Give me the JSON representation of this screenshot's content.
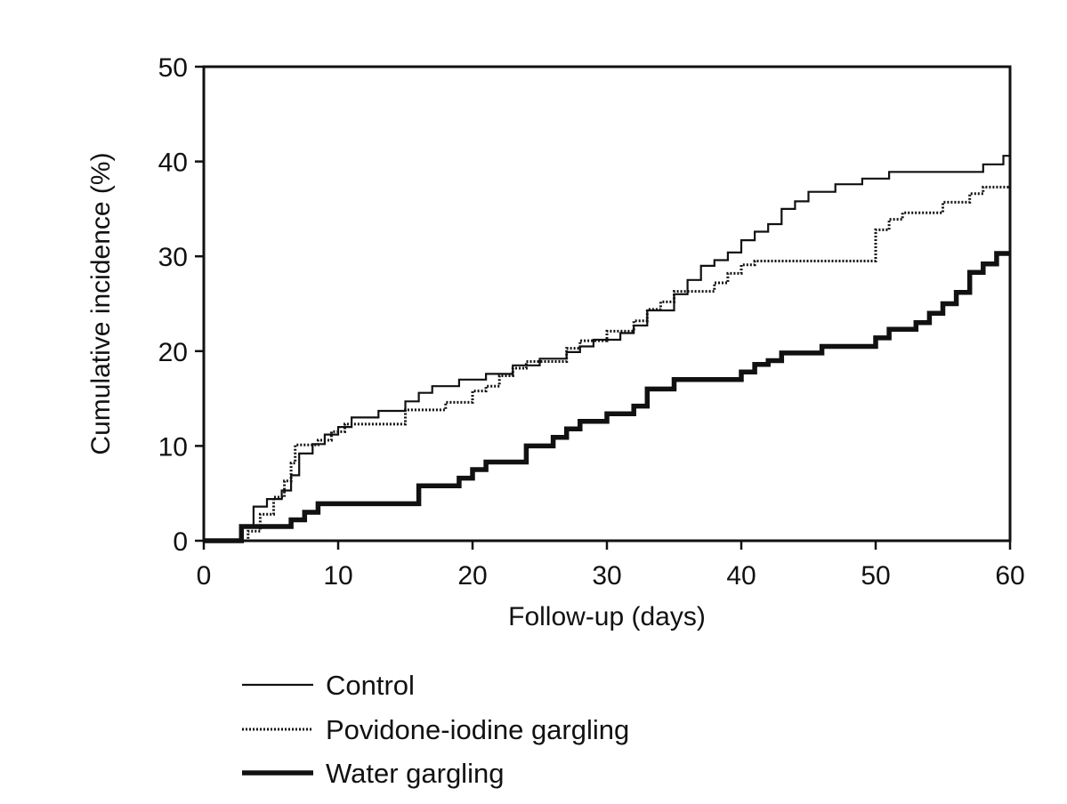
{
  "chart_data": {
    "type": "line",
    "step": true,
    "title": "",
    "xlabel": "Follow-up (days)",
    "ylabel": "Cumulative incidence (%)",
    "xlim": [
      0,
      60
    ],
    "ylim": [
      0,
      50
    ],
    "xticks": [
      "0",
      "10",
      "20",
      "30",
      "40",
      "50",
      "60"
    ],
    "yticks": [
      "0",
      "10",
      "20",
      "30",
      "40",
      "50"
    ],
    "grid": false,
    "legend_position": "bottom-left",
    "series": [
      {
        "name": "Control",
        "style": "solid-thin",
        "color": "#111111",
        "points": [
          [
            0,
            0
          ],
          [
            2.8,
            0
          ],
          [
            2.8,
            1.5
          ],
          [
            3.7,
            1.5
          ],
          [
            3.7,
            3.6
          ],
          [
            4.7,
            3.6
          ],
          [
            4.7,
            4.4
          ],
          [
            5.8,
            4.4
          ],
          [
            5.8,
            5.3
          ],
          [
            6.5,
            5.3
          ],
          [
            6.5,
            6.9
          ],
          [
            7.1,
            6.9
          ],
          [
            7.1,
            9.2
          ],
          [
            8.1,
            9.2
          ],
          [
            8.1,
            10.2
          ],
          [
            9,
            10.2
          ],
          [
            9,
            11.2
          ],
          [
            10,
            11.2
          ],
          [
            10,
            12
          ],
          [
            11,
            12
          ],
          [
            11,
            13
          ],
          [
            13,
            13
          ],
          [
            13,
            13.7
          ],
          [
            15,
            13.7
          ],
          [
            15,
            14.7
          ],
          [
            16,
            14.7
          ],
          [
            16,
            15.6
          ],
          [
            17,
            15.6
          ],
          [
            17,
            16.3
          ],
          [
            19,
            16.3
          ],
          [
            19,
            17
          ],
          [
            21,
            17
          ],
          [
            21,
            17.6
          ],
          [
            23,
            17.6
          ],
          [
            23,
            18.5
          ],
          [
            25,
            18.5
          ],
          [
            25,
            19.2
          ],
          [
            27,
            19.2
          ],
          [
            27,
            19.9
          ],
          [
            28,
            19.9
          ],
          [
            28,
            20.5
          ],
          [
            29,
            20.5
          ],
          [
            29,
            21.2
          ],
          [
            31,
            21.2
          ],
          [
            31,
            21.9
          ],
          [
            32,
            21.9
          ],
          [
            32,
            22.7
          ],
          [
            33,
            22.7
          ],
          [
            33,
            24.3
          ],
          [
            35,
            24.3
          ],
          [
            35,
            26
          ],
          [
            36,
            26
          ],
          [
            36,
            27.5
          ],
          [
            37,
            27.5
          ],
          [
            37,
            29
          ],
          [
            38,
            29
          ],
          [
            38,
            29.6
          ],
          [
            39,
            29.6
          ],
          [
            39,
            30.4
          ],
          [
            40,
            30.4
          ],
          [
            40,
            31.7
          ],
          [
            41,
            31.7
          ],
          [
            41,
            32.6
          ],
          [
            42,
            32.6
          ],
          [
            42,
            33.4
          ],
          [
            43,
            33.4
          ],
          [
            43,
            35
          ],
          [
            44,
            35
          ],
          [
            44,
            35.8
          ],
          [
            45,
            35.8
          ],
          [
            45,
            36.8
          ],
          [
            47,
            36.8
          ],
          [
            47,
            37.6
          ],
          [
            49,
            37.6
          ],
          [
            49,
            38.2
          ],
          [
            51,
            38.2
          ],
          [
            51,
            38.9
          ],
          [
            58,
            38.9
          ],
          [
            58,
            39.7
          ],
          [
            59.5,
            39.7
          ],
          [
            59.5,
            40.6
          ],
          [
            60,
            40.6
          ]
        ]
      },
      {
        "name": "Povidone-iodine gargling",
        "style": "dotted",
        "color": "#111111",
        "points": [
          [
            0,
            0
          ],
          [
            3.3,
            0
          ],
          [
            3.3,
            1
          ],
          [
            4.2,
            1
          ],
          [
            4.2,
            2.8
          ],
          [
            5.2,
            2.8
          ],
          [
            5.2,
            4.6
          ],
          [
            6,
            4.6
          ],
          [
            6,
            6.3
          ],
          [
            6.5,
            6.3
          ],
          [
            6.5,
            8.2
          ],
          [
            6.8,
            8.2
          ],
          [
            6.8,
            10.1
          ],
          [
            8.5,
            10.1
          ],
          [
            8.5,
            10.6
          ],
          [
            9.5,
            10.6
          ],
          [
            9.5,
            11.5
          ],
          [
            10.5,
            11.5
          ],
          [
            10.5,
            12.3
          ],
          [
            15,
            12.3
          ],
          [
            15,
            13.8
          ],
          [
            18,
            13.8
          ],
          [
            18,
            14.6
          ],
          [
            20,
            14.6
          ],
          [
            20,
            15.8
          ],
          [
            21,
            15.8
          ],
          [
            21,
            16.3
          ],
          [
            22,
            16.3
          ],
          [
            22,
            17.4
          ],
          [
            23,
            17.4
          ],
          [
            23,
            18.2
          ],
          [
            24,
            18.2
          ],
          [
            24,
            18.9
          ],
          [
            27,
            18.9
          ],
          [
            27,
            20.3
          ],
          [
            28,
            20.3
          ],
          [
            28,
            21.1
          ],
          [
            30,
            21.1
          ],
          [
            30,
            22.1
          ],
          [
            32,
            22.1
          ],
          [
            32,
            23.2
          ],
          [
            33,
            23.2
          ],
          [
            33,
            24.4
          ],
          [
            34,
            24.4
          ],
          [
            34,
            25.2
          ],
          [
            35,
            25.2
          ],
          [
            35,
            26.3
          ],
          [
            38,
            26.3
          ],
          [
            38,
            27.2
          ],
          [
            39,
            27.2
          ],
          [
            39,
            28.2
          ],
          [
            40,
            28.2
          ],
          [
            40,
            29.1
          ],
          [
            41,
            29.1
          ],
          [
            41,
            29.5
          ],
          [
            50,
            29.5
          ],
          [
            50,
            32.8
          ],
          [
            51,
            32.8
          ],
          [
            51,
            33.9
          ],
          [
            52,
            33.9
          ],
          [
            52,
            34.6
          ],
          [
            55,
            34.6
          ],
          [
            55,
            35.7
          ],
          [
            57,
            35.7
          ],
          [
            57,
            36.6
          ],
          [
            58,
            36.6
          ],
          [
            58,
            37.3
          ],
          [
            60,
            37.3
          ]
        ]
      },
      {
        "name": "Water gargling",
        "style": "solid-thick",
        "color": "#111111",
        "points": [
          [
            0,
            0
          ],
          [
            2.8,
            0
          ],
          [
            2.8,
            1.5
          ],
          [
            6.5,
            1.5
          ],
          [
            6.5,
            2.2
          ],
          [
            7.5,
            2.2
          ],
          [
            7.5,
            3
          ],
          [
            8.5,
            3
          ],
          [
            8.5,
            3.9
          ],
          [
            16,
            3.9
          ],
          [
            16,
            5.8
          ],
          [
            19,
            5.8
          ],
          [
            19,
            6.6
          ],
          [
            20,
            6.6
          ],
          [
            20,
            7.5
          ],
          [
            21,
            7.5
          ],
          [
            21,
            8.3
          ],
          [
            24,
            8.3
          ],
          [
            24,
            10
          ],
          [
            26,
            10
          ],
          [
            26,
            10.9
          ],
          [
            27,
            10.9
          ],
          [
            27,
            11.8
          ],
          [
            28,
            11.8
          ],
          [
            28,
            12.6
          ],
          [
            30,
            12.6
          ],
          [
            30,
            13.4
          ],
          [
            32,
            13.4
          ],
          [
            32,
            14.2
          ],
          [
            33,
            14.2
          ],
          [
            33,
            16
          ],
          [
            35,
            16
          ],
          [
            35,
            17
          ],
          [
            40,
            17
          ],
          [
            40,
            17.8
          ],
          [
            41,
            17.8
          ],
          [
            41,
            18.6
          ],
          [
            42,
            18.6
          ],
          [
            42,
            19
          ],
          [
            43,
            19
          ],
          [
            43,
            19.8
          ],
          [
            46,
            19.8
          ],
          [
            46,
            20.5
          ],
          [
            50,
            20.5
          ],
          [
            50,
            21.4
          ],
          [
            51,
            21.4
          ],
          [
            51,
            22.3
          ],
          [
            53,
            22.3
          ],
          [
            53,
            23
          ],
          [
            54,
            23
          ],
          [
            54,
            24
          ],
          [
            55,
            24
          ],
          [
            55,
            25
          ],
          [
            56,
            25
          ],
          [
            56,
            26.2
          ],
          [
            57,
            26.2
          ],
          [
            57,
            28.3
          ],
          [
            58,
            28.3
          ],
          [
            58,
            29.2
          ],
          [
            59,
            29.2
          ],
          [
            59,
            30.3
          ],
          [
            60,
            30.3
          ]
        ]
      }
    ]
  }
}
